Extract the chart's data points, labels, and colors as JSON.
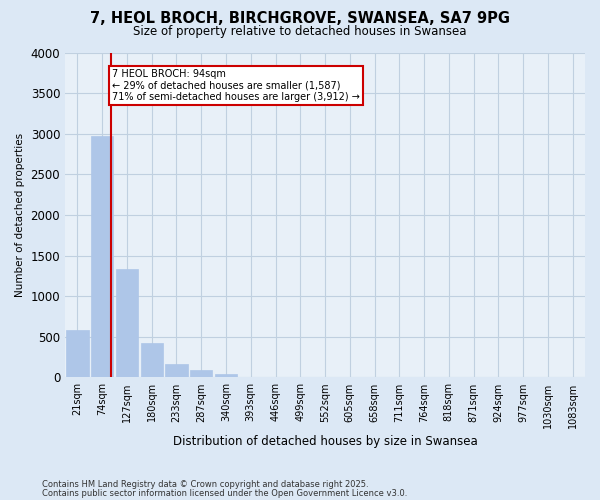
{
  "title": "7, HEOL BROCH, BIRCHGROVE, SWANSEA, SA7 9PG",
  "subtitle": "Size of property relative to detached houses in Swansea",
  "xlabel": "Distribution of detached houses by size in Swansea",
  "ylabel": "Number of detached properties",
  "footnote1": "Contains HM Land Registry data © Crown copyright and database right 2025.",
  "footnote2": "Contains public sector information licensed under the Open Government Licence v3.0.",
  "bar_labels": [
    "21sqm",
    "74sqm",
    "127sqm",
    "180sqm",
    "233sqm",
    "287sqm",
    "340sqm",
    "393sqm",
    "446sqm",
    "499sqm",
    "552sqm",
    "605sqm",
    "658sqm",
    "711sqm",
    "764sqm",
    "818sqm",
    "871sqm",
    "924sqm",
    "977sqm",
    "1030sqm",
    "1083sqm"
  ],
  "bar_values": [
    580,
    2970,
    1340,
    430,
    160,
    90,
    40,
    10,
    0,
    0,
    0,
    0,
    0,
    0,
    0,
    0,
    0,
    0,
    0,
    0,
    0
  ],
  "bar_color": "#aec6e8",
  "bar_edge_color": "#aec6e8",
  "grid_color": "#c0d0e0",
  "background_color": "#dce8f5",
  "plot_bg_color": "#e8f0f8",
  "redline_color": "#cc0000",
  "redline_x": 1.35,
  "annotation_text": "7 HEOL BROCH: 94sqm\n← 29% of detached houses are smaller (1,587)\n71% of semi-detached houses are larger (3,912) →",
  "annotation_box_facecolor": "white",
  "annotation_box_edgecolor": "#cc0000",
  "ylim_max": 4000,
  "yticks": [
    0,
    500,
    1000,
    1500,
    2000,
    2500,
    3000,
    3500,
    4000
  ]
}
